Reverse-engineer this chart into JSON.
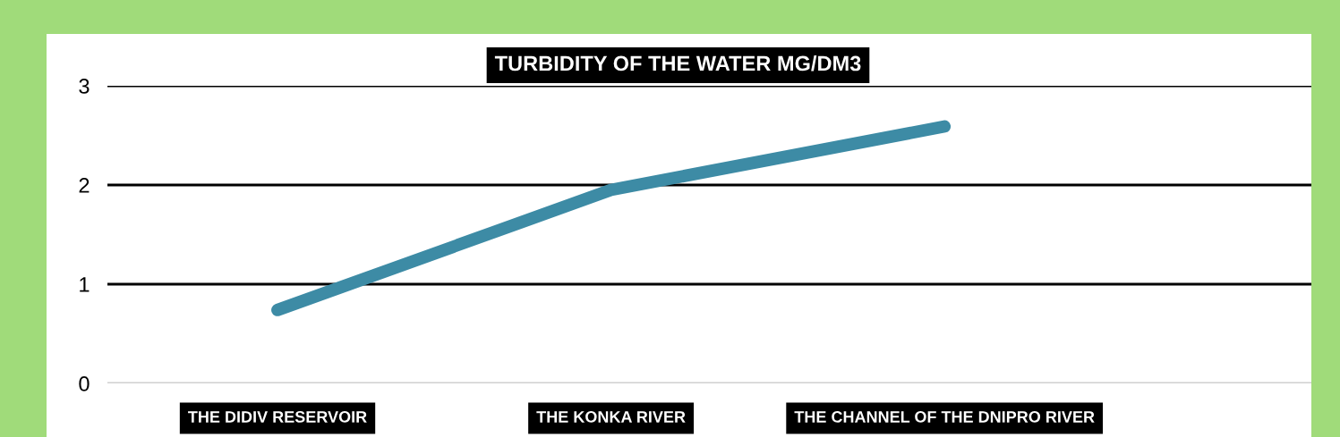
{
  "chart_data": {
    "type": "line",
    "title": "TURBIDITY OF THE WATER MG/DM3",
    "categories": [
      "THE DIDIV RESERVOIR",
      "THE KONKA RIVER",
      "THE CHANNEL OF THE DNIPRO RIVER"
    ],
    "series": [
      {
        "color": "#3d8ba5",
        "values": [
          0.74,
          1.95,
          2.59
        ]
      }
    ],
    "ylim": [
      0,
      3
    ],
    "yticks": [
      0,
      1,
      2,
      3
    ],
    "grid": "y",
    "line_style": "solid"
  }
}
